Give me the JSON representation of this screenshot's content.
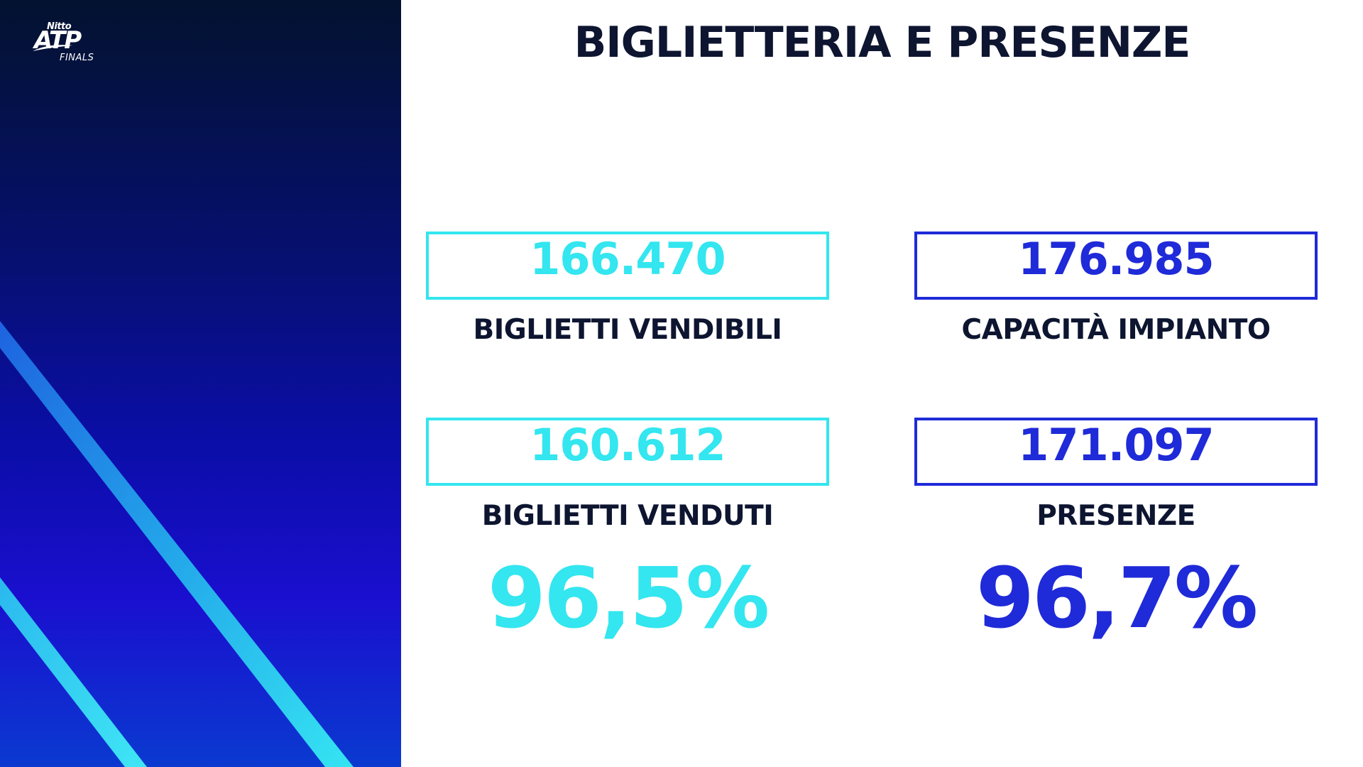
{
  "logo": {
    "brand_top": "Nitto",
    "brand_main": "ATP",
    "brand_bottom": "FINALS"
  },
  "title": "BIGLIETTERIA E PRESENZE",
  "stats": {
    "biglietti_vendibili": {
      "value": "166.470",
      "label": "BIGLIETTI VENDIBILI"
    },
    "capacita_impianto": {
      "value": "176.985",
      "label": "CAPACITÀ IMPIANTO"
    },
    "biglietti_venduti": {
      "value": "160.612",
      "label": "BIGLIETTI VENDUTI",
      "percent": "96,5%"
    },
    "presenze": {
      "value": "171.097",
      "label": "PRESENZE",
      "percent": "96,7%"
    }
  },
  "colors": {
    "cyan": "#33e6ef",
    "blue": "#1f2ad8",
    "dark_text": "#0d1530",
    "panel_top": "#03122f",
    "panel_bottom": "#1a0fcf"
  }
}
